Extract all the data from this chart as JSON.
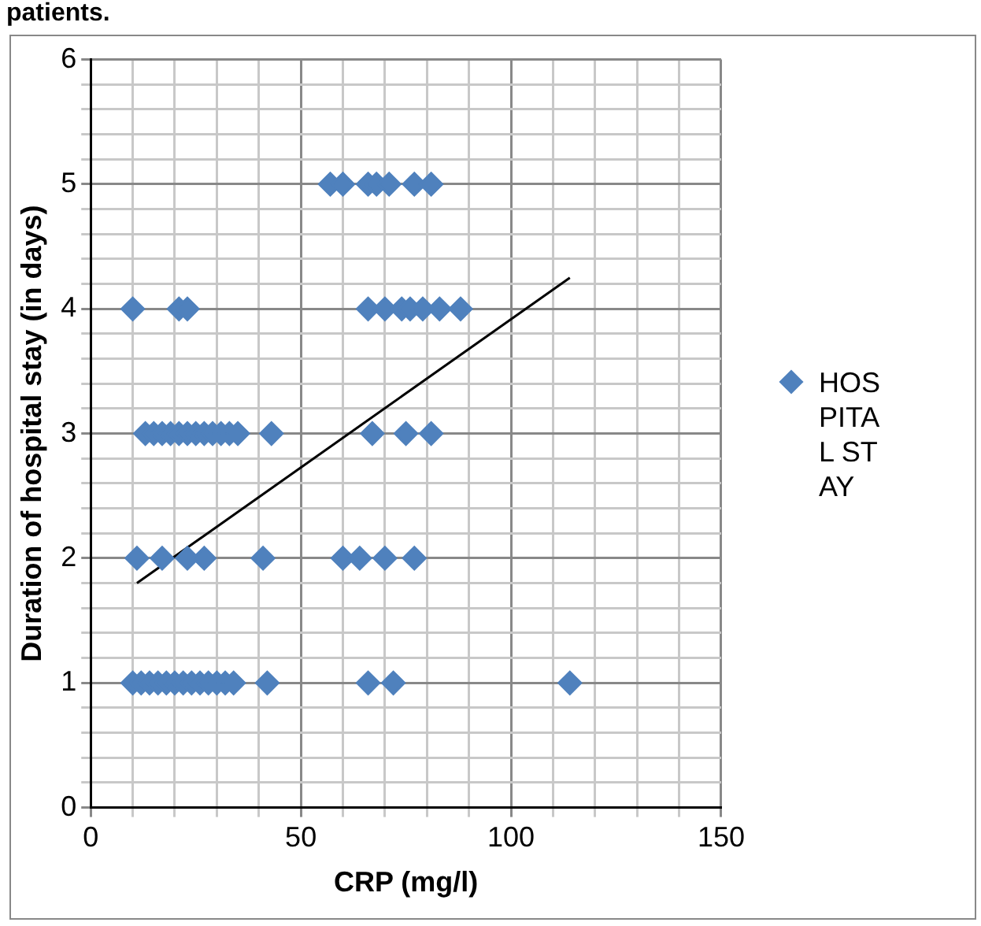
{
  "chart_data": {
    "type": "scatter",
    "title": "patients.",
    "xlabel": "CRP (mg/l)",
    "ylabel": "Duration of hospital stay (in days)",
    "xlim": [
      0,
      150
    ],
    "ylim": [
      0,
      6
    ],
    "xticks": [
      0,
      {
        "value": 10,
        "label": null
      },
      {
        "value": 20,
        "label": null
      },
      {
        "value": 30,
        "label": null
      },
      {
        "value": 40,
        "label": null
      },
      50,
      {
        "value": 60,
        "label": null
      },
      {
        "value": 70,
        "label": null
      },
      {
        "value": 80,
        "label": null
      },
      {
        "value": 90,
        "label": null
      },
      100,
      {
        "value": 110,
        "label": null
      },
      {
        "value": 120,
        "label": null
      },
      {
        "value": 130,
        "label": null
      },
      {
        "value": 140,
        "label": null
      },
      150
    ],
    "yticks": [
      0,
      {
        "value": 0.2,
        "label": null
      },
      {
        "value": 0.4,
        "label": null
      },
      {
        "value": 0.6,
        "label": null
      },
      {
        "value": 0.8,
        "label": null
      },
      1,
      {
        "value": 1.2,
        "label": null
      },
      {
        "value": 1.4,
        "label": null
      },
      {
        "value": 1.6,
        "label": null
      },
      {
        "value": 1.8,
        "label": null
      },
      2,
      {
        "value": 2.2,
        "label": null
      },
      {
        "value": 2.4,
        "label": null
      },
      {
        "value": 2.6,
        "label": null
      },
      {
        "value": 2.8,
        "label": null
      },
      3,
      {
        "value": 3.2,
        "label": null
      },
      {
        "value": 3.4,
        "label": null
      },
      {
        "value": 3.6,
        "label": null
      },
      {
        "value": 3.8,
        "label": null
      },
      4,
      {
        "value": 4.2,
        "label": null
      },
      {
        "value": 4.4,
        "label": null
      },
      {
        "value": 4.6,
        "label": null
      },
      {
        "value": 4.8,
        "label": null
      },
      5,
      {
        "value": 5.2,
        "label": null
      },
      {
        "value": 5.4,
        "label": null
      },
      {
        "value": 5.6,
        "label": null
      },
      {
        "value": 5.8,
        "label": null
      },
      6
    ],
    "grid": true,
    "legend": "right",
    "marker": "diamond",
    "series": [
      {
        "name": "HOSPITAL STAY",
        "color": "#4f81bd",
        "x": [
          57,
          60,
          66,
          68,
          71,
          77,
          81,
          10,
          21,
          23,
          66,
          70,
          74,
          76,
          79,
          83,
          88,
          13,
          15,
          17,
          19,
          21,
          23,
          25,
          27,
          29,
          31,
          33,
          35,
          43,
          67,
          75,
          81,
          11,
          17,
          23,
          27,
          41,
          60,
          64,
          70,
          77,
          10,
          12,
          14,
          16,
          18,
          20,
          22,
          24,
          26,
          28,
          30,
          32,
          34,
          42,
          66,
          72,
          114
        ],
        "values": [
          5,
          5,
          5,
          5,
          5,
          5,
          5,
          4,
          4,
          4,
          4,
          4,
          4,
          4,
          4,
          4,
          4,
          3,
          3,
          3,
          3,
          3,
          3,
          3,
          3,
          3,
          3,
          3,
          3,
          3,
          3,
          3,
          3,
          2,
          2,
          2,
          2,
          2,
          2,
          2,
          2,
          2,
          1,
          1,
          1,
          1,
          1,
          1,
          1,
          1,
          1,
          1,
          1,
          1,
          1,
          1,
          1,
          1,
          1
        ]
      },
      {
        "type": "line",
        "color": "#000000",
        "marker": "none",
        "x": [
          11,
          114
        ],
        "values": [
          1.8,
          4.25
        ]
      }
    ]
  }
}
